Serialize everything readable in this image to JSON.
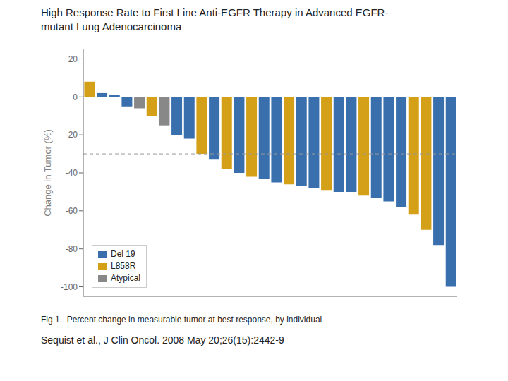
{
  "chart_data": {
    "type": "bar",
    "title": "High Response Rate to First Line Anti-EGFR Therapy in Advanced EGFR-\nmutant Lung Adenocarcinoma",
    "ylabel": "Change in Tumor (%)",
    "annotations": [
      "Fig 1.  Percent change in measurable tumor at best response, by individual",
      "Sequist et al., J Clin Oncol. 2008 May 20;26(15):2442-9"
    ],
    "ylim": [
      -105,
      25
    ],
    "yticks": [
      -100,
      -80,
      -60,
      -40,
      -20,
      0,
      20
    ],
    "reference_line": -30,
    "grid": false,
    "legend": "lower left",
    "stacked": true,
    "tick_labels": "y",
    "series": [
      {
        "name": "Del 19",
        "color": "#3a6fad",
        "values": [
          null,
          2,
          1,
          -5,
          null,
          null,
          null,
          -20,
          -22,
          null,
          -33,
          null,
          -40,
          null,
          -43,
          -45,
          null,
          -47,
          -48,
          null,
          -50,
          -50,
          null,
          -53,
          -55,
          -58,
          null,
          null,
          -78,
          -100
        ]
      },
      {
        "name": "L858R",
        "color": "#d4a017",
        "values": [
          8,
          null,
          null,
          null,
          null,
          -10,
          null,
          null,
          null,
          -30,
          null,
          -38,
          null,
          -42,
          null,
          null,
          -46,
          null,
          null,
          -49,
          null,
          null,
          -52,
          null,
          null,
          null,
          -62,
          -70,
          null,
          null
        ]
      },
      {
        "name": "Atypical",
        "color": "#888888",
        "values": [
          null,
          null,
          null,
          null,
          -6,
          null,
          -15,
          null,
          null,
          null,
          null,
          null,
          null,
          null,
          null,
          null,
          null,
          null,
          null,
          null,
          null,
          null,
          null,
          null,
          null,
          null,
          null,
          null,
          null,
          null
        ]
      }
    ]
  }
}
